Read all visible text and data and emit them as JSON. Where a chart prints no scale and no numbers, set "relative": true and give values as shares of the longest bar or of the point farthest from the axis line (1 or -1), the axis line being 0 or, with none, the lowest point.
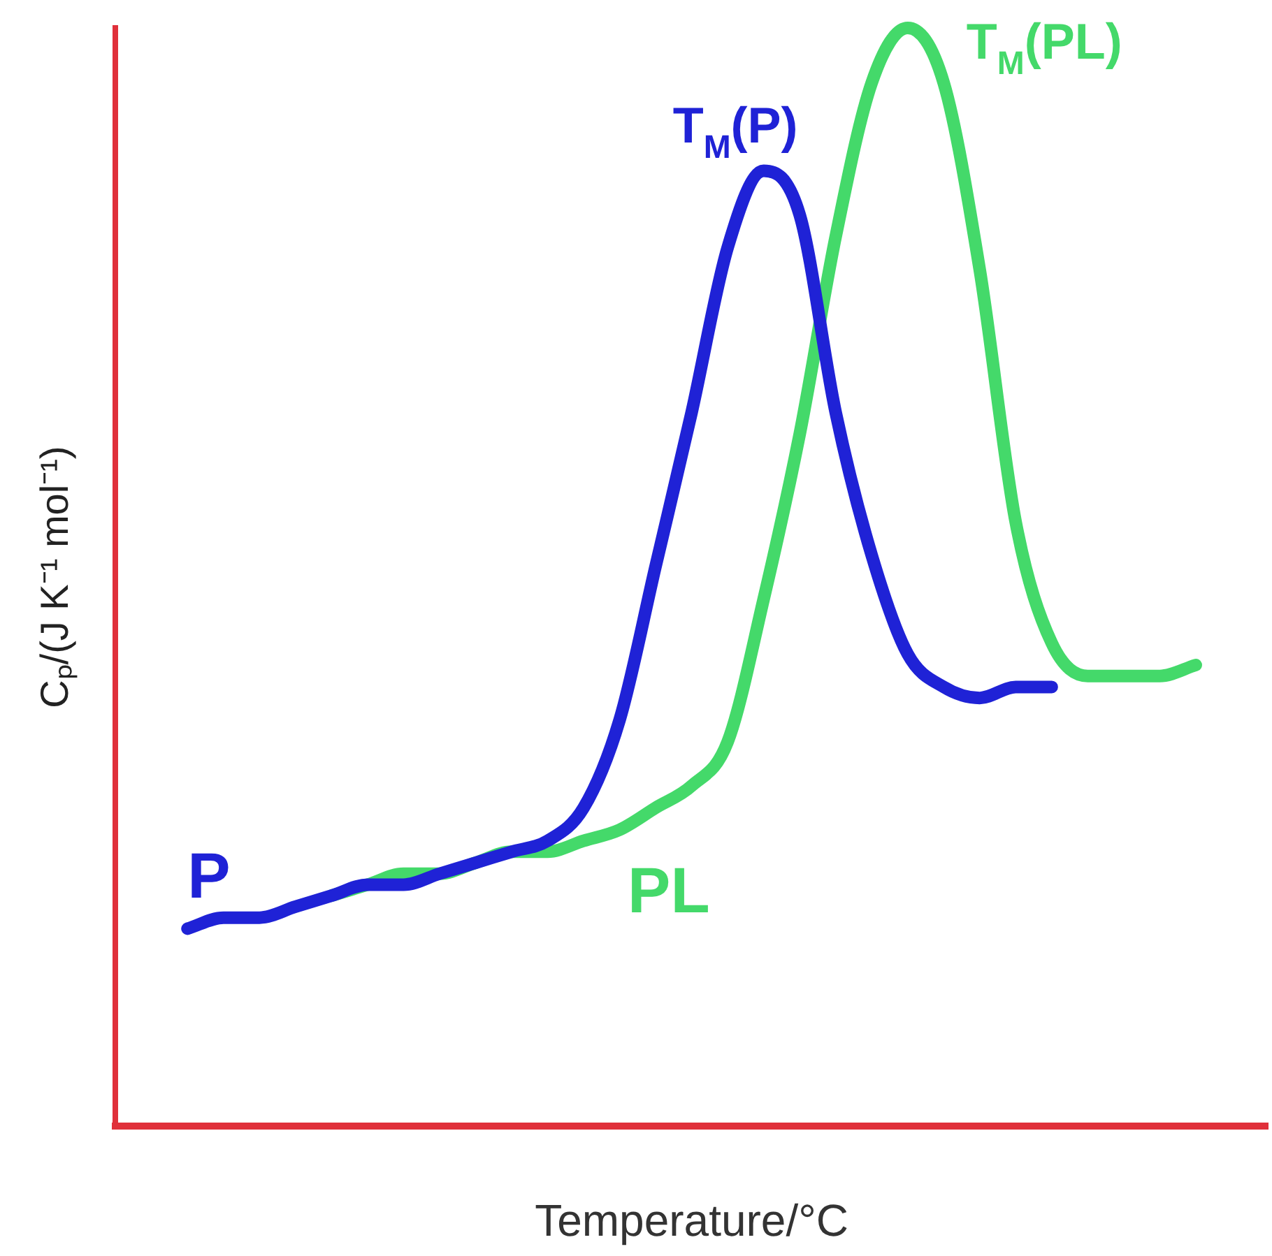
{
  "chart_data": {
    "type": "line",
    "relative": true,
    "xlabel": "Temperature/°C",
    "ylabel": "Cₚ/(J K⁻¹ mol⁻¹)",
    "categories": [
      null,
      null,
      null,
      null,
      null,
      null,
      null,
      null,
      null,
      null,
      null,
      null,
      null,
      null,
      null,
      null,
      null,
      null,
      null,
      null,
      null,
      null,
      null,
      null,
      null,
      null,
      null,
      null,
      null,
      null,
      null,
      null,
      null
    ],
    "series": [
      {
        "name": "P",
        "color": "#1f22d6",
        "values": [
          null,
          null,
          0.18,
          0.19,
          0.19,
          0.2,
          0.21,
          0.22,
          0.22,
          0.23,
          0.24,
          0.25,
          0.26,
          0.29,
          0.37,
          0.51,
          0.65,
          0.8,
          0.87,
          0.83,
          0.65,
          0.52,
          0.43,
          0.4,
          0.39,
          0.4,
          0.4,
          null,
          null,
          null,
          null,
          null,
          null
        ]
      },
      {
        "name": "PL",
        "color": "#44d96a",
        "values": [
          null,
          null,
          null,
          null,
          null,
          null,
          0.21,
          0.22,
          0.23,
          0.23,
          0.24,
          0.25,
          0.25,
          0.26,
          0.27,
          0.29,
          0.31,
          0.35,
          0.48,
          0.63,
          0.81,
          0.95,
          1,
          0.95,
          0.78,
          0.55,
          0.44,
          0.41,
          0.41,
          0.41,
          0.42,
          null,
          null
        ]
      }
    ],
    "annotations": [
      "T$_{M}$(P)",
      "T$_{M}$(PL)"
    ],
    "grid": false,
    "legend": false,
    "marker": "none",
    "line_style": "solid"
  }
}
